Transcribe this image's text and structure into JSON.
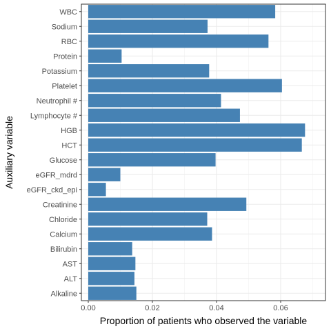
{
  "chart_data": {
    "type": "bar",
    "orientation": "horizontal",
    "xlabel": "Proportion of patients who observed the variable",
    "ylabel": "Auxiliary variable",
    "xlim": [
      0,
      0.0697
    ],
    "x_ticks": [
      0.0,
      0.02,
      0.04,
      0.06
    ],
    "x_tick_labels": [
      "0.00",
      "0.02",
      "0.04",
      "0.06"
    ],
    "grid": true,
    "bar_color": "#4682B4",
    "categories": [
      "WBC",
      "Sodium",
      "RBC",
      "Protein",
      "Potassium",
      "Platelet",
      "Neutrophil #",
      "Lymphocyte #",
      "HGB",
      "HCT",
      "Glucose",
      "eGFR_mdrd",
      "eGFR_ckd_epi",
      "Creatinine",
      "Chloride",
      "Calcium",
      "Bilirubin",
      "AST",
      "ALT",
      "Alkaline"
    ],
    "values": [
      0.0583,
      0.0372,
      0.0562,
      0.0104,
      0.0377,
      0.0604,
      0.0414,
      0.0473,
      0.0676,
      0.0666,
      0.0397,
      0.01,
      0.0055,
      0.0493,
      0.0371,
      0.0386,
      0.0137,
      0.0147,
      0.0144,
      0.015
    ]
  }
}
